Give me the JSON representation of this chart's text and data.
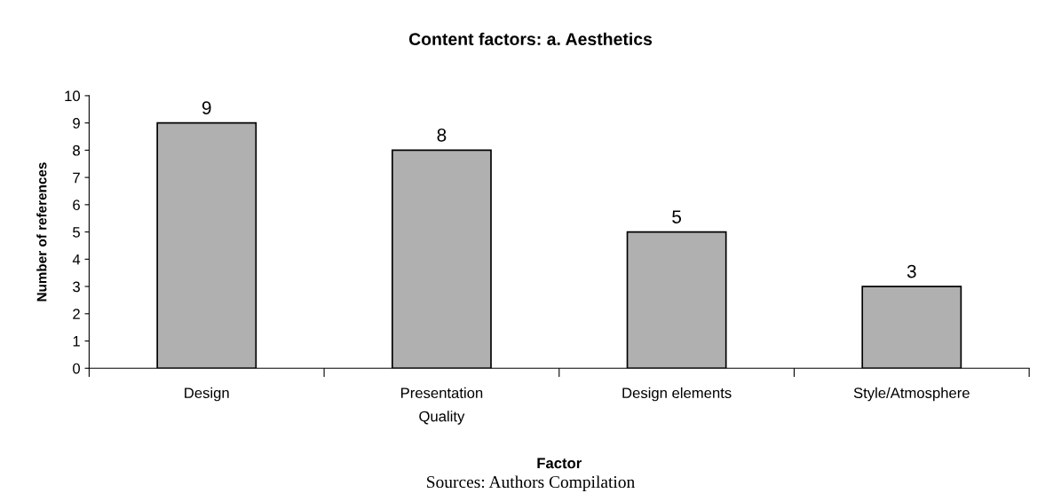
{
  "chart_data": {
    "type": "bar",
    "title": "Content factors: a. Aesthetics",
    "categories": [
      "Design",
      "Presentation\nQuality",
      "Design elements",
      "Style/Atmosphere"
    ],
    "values": [
      9,
      8,
      5,
      3
    ],
    "color": "#b0b0b0",
    "xlabel": "Factor",
    "ylabel": "Number of references",
    "ylim": [
      0,
      10
    ],
    "yticks": [
      0,
      1,
      2,
      3,
      4,
      5,
      6,
      7,
      8,
      9,
      10
    ],
    "data_labels": true,
    "grid": false,
    "legend": false,
    "annotations": [
      "Sources: Authors Compilation"
    ]
  }
}
